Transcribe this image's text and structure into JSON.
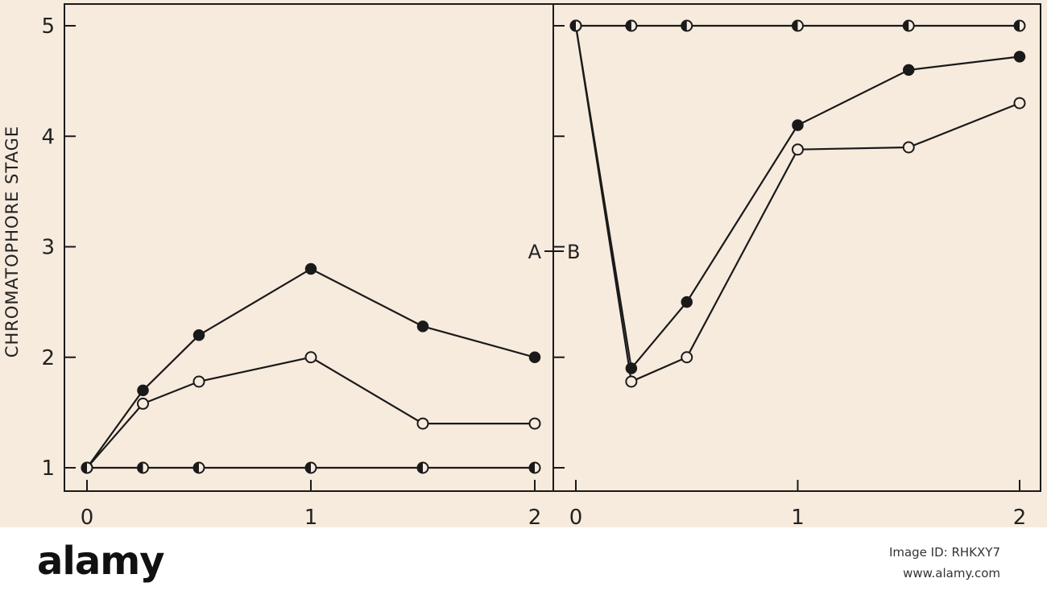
{
  "chart_data": [
    {
      "type": "line",
      "panel_label": "A",
      "ylabel": "CHROMATOPHORE STAGE",
      "ylim": [
        0.8,
        5.2
      ],
      "xlim": [
        -0.05,
        2.03
      ],
      "yticks": [
        "1",
        "2",
        "3",
        "4",
        "5"
      ],
      "xticks": [
        "0",
        "1",
        "2"
      ],
      "series": [
        {
          "marker": "filled",
          "points": [
            [
              0,
              1.0
            ],
            [
              0.25,
              1.7
            ],
            [
              0.5,
              2.2
            ],
            [
              1.0,
              2.8
            ],
            [
              1.5,
              2.28
            ],
            [
              2.0,
              2.0
            ]
          ]
        },
        {
          "marker": "open",
          "points": [
            [
              0,
              1.0
            ],
            [
              0.25,
              1.58
            ],
            [
              0.5,
              1.78
            ],
            [
              1.0,
              2.0
            ],
            [
              1.5,
              1.4
            ],
            [
              2.0,
              1.4
            ]
          ]
        },
        {
          "marker": "half",
          "points": [
            [
              0,
              1.0
            ],
            [
              0.25,
              1.0
            ],
            [
              0.5,
              1.0
            ],
            [
              1.0,
              1.0
            ],
            [
              1.5,
              1.0
            ],
            [
              2.0,
              1.0
            ]
          ]
        }
      ]
    },
    {
      "type": "line",
      "panel_label": "B",
      "ylim": [
        0.8,
        5.2
      ],
      "xlim": [
        -0.05,
        2.03
      ],
      "xticks": [
        "0",
        "1",
        "2"
      ],
      "series": [
        {
          "marker": "filled",
          "points": [
            [
              0,
              5.0
            ],
            [
              0.25,
              1.9
            ],
            [
              0.5,
              2.5
            ],
            [
              1.0,
              4.1
            ],
            [
              1.5,
              4.6
            ],
            [
              2.0,
              4.72
            ]
          ]
        },
        {
          "marker": "open",
          "points": [
            [
              0,
              5.0
            ],
            [
              0.25,
              1.78
            ],
            [
              0.5,
              2.0
            ],
            [
              1.0,
              3.88
            ],
            [
              1.5,
              3.9
            ],
            [
              2.0,
              4.3
            ]
          ]
        },
        {
          "marker": "half",
          "points": [
            [
              0,
              5.0
            ],
            [
              0.25,
              5.0
            ],
            [
              0.5,
              5.0
            ],
            [
              1.0,
              5.0
            ],
            [
              1.5,
              5.0
            ],
            [
              2.0,
              5.0
            ]
          ]
        }
      ]
    }
  ],
  "watermark": {
    "brand": "alamy"
  },
  "footer": {
    "logo": "alamy",
    "image_id": "Image ID: RHKXY7",
    "url": "www.alamy.com"
  },
  "colors": {
    "background": "#f7ebde",
    "ink": "#1a1a1a",
    "footer": "#ffffff"
  }
}
